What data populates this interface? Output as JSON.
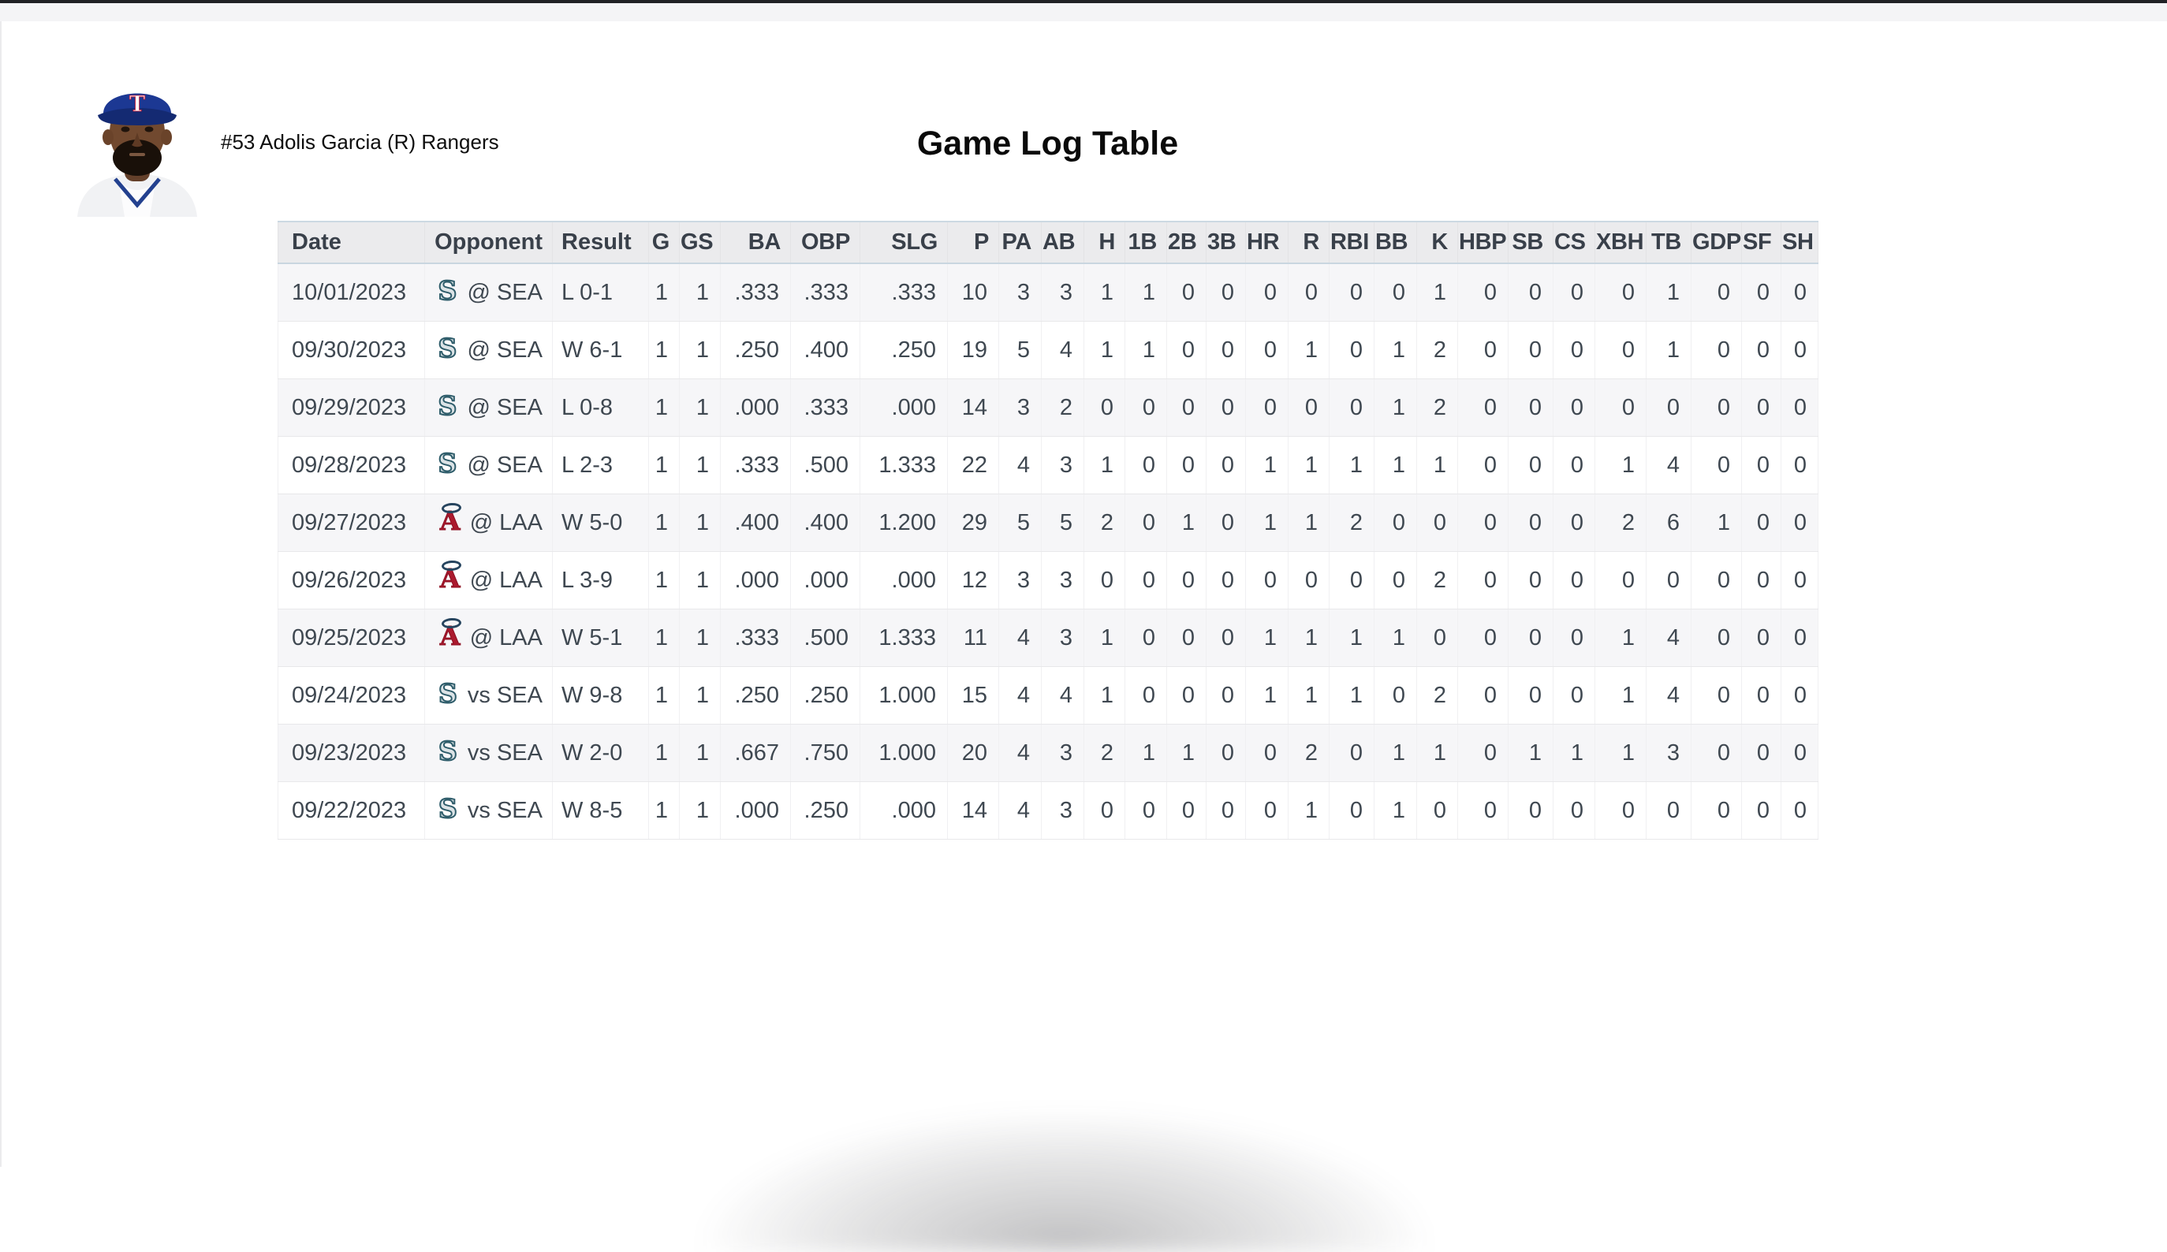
{
  "header": {
    "player_label": "#53 Adolis Garcia (R) Rangers",
    "title": "Game Log Table"
  },
  "colors": {
    "header_rule_blue": "#ccd9e2",
    "row_stripe": "#f6f6f8",
    "header_numeric_bg": "#ebebed",
    "body_text": "#3f4851",
    "mariners_outline": "#2f5d6b",
    "mariners_fill": "#dbe3e6",
    "angels_red": "#ab1a2e",
    "angels_halo_navy": "#27455f",
    "rangers_cap_blue": "#1c3893"
  },
  "table": {
    "columns": [
      "Date",
      "Opponent",
      "Result",
      "G",
      "GS",
      "BA",
      "OBP",
      "SLG",
      "P",
      "PA",
      "AB",
      "H",
      "1B",
      "2B",
      "3B",
      "HR",
      "R",
      "RBI",
      "BB",
      "K",
      "HBP",
      "SB",
      "CS",
      "XBH",
      "TB",
      "GDP",
      "SF",
      "SH"
    ],
    "rows": [
      {
        "date": "10/01/2023",
        "opponent": "@ SEA",
        "team_logo": "seattle-mariners",
        "result": "L 0-1",
        "stats": [
          "1",
          "1",
          ".333",
          ".333",
          ".333",
          "10",
          "3",
          "3",
          "1",
          "1",
          "0",
          "0",
          "0",
          "0",
          "0",
          "0",
          "1",
          "0",
          "0",
          "0",
          "0",
          "1",
          "0",
          "0",
          "0"
        ]
      },
      {
        "date": "09/30/2023",
        "opponent": "@ SEA",
        "team_logo": "seattle-mariners",
        "result": "W 6-1",
        "stats": [
          "1",
          "1",
          ".250",
          ".400",
          ".250",
          "19",
          "5",
          "4",
          "1",
          "1",
          "0",
          "0",
          "0",
          "1",
          "0",
          "1",
          "2",
          "0",
          "0",
          "0",
          "0",
          "1",
          "0",
          "0",
          "0"
        ]
      },
      {
        "date": "09/29/2023",
        "opponent": "@ SEA",
        "team_logo": "seattle-mariners",
        "result": "L 0-8",
        "stats": [
          "1",
          "1",
          ".000",
          ".333",
          ".000",
          "14",
          "3",
          "2",
          "0",
          "0",
          "0",
          "0",
          "0",
          "0",
          "0",
          "1",
          "2",
          "0",
          "0",
          "0",
          "0",
          "0",
          "0",
          "0",
          "0"
        ]
      },
      {
        "date": "09/28/2023",
        "opponent": "@ SEA",
        "team_logo": "seattle-mariners",
        "result": "L 2-3",
        "stats": [
          "1",
          "1",
          ".333",
          ".500",
          "1.333",
          "22",
          "4",
          "3",
          "1",
          "0",
          "0",
          "0",
          "1",
          "1",
          "1",
          "1",
          "1",
          "0",
          "0",
          "0",
          "1",
          "4",
          "0",
          "0",
          "0"
        ]
      },
      {
        "date": "09/27/2023",
        "opponent": "@ LAA",
        "team_logo": "los-angeles-angels",
        "result": "W 5-0",
        "stats": [
          "1",
          "1",
          ".400",
          ".400",
          "1.200",
          "29",
          "5",
          "5",
          "2",
          "0",
          "1",
          "0",
          "1",
          "1",
          "2",
          "0",
          "0",
          "0",
          "0",
          "0",
          "2",
          "6",
          "1",
          "0",
          "0"
        ]
      },
      {
        "date": "09/26/2023",
        "opponent": "@ LAA",
        "team_logo": "los-angeles-angels",
        "result": "L 3-9",
        "stats": [
          "1",
          "1",
          ".000",
          ".000",
          ".000",
          "12",
          "3",
          "3",
          "0",
          "0",
          "0",
          "0",
          "0",
          "0",
          "0",
          "0",
          "2",
          "0",
          "0",
          "0",
          "0",
          "0",
          "0",
          "0",
          "0"
        ]
      },
      {
        "date": "09/25/2023",
        "opponent": "@ LAA",
        "team_logo": "los-angeles-angels",
        "result": "W 5-1",
        "stats": [
          "1",
          "1",
          ".333",
          ".500",
          "1.333",
          "11",
          "4",
          "3",
          "1",
          "0",
          "0",
          "0",
          "1",
          "1",
          "1",
          "1",
          "0",
          "0",
          "0",
          "0",
          "1",
          "4",
          "0",
          "0",
          "0"
        ]
      },
      {
        "date": "09/24/2023",
        "opponent": "vs SEA",
        "team_logo": "seattle-mariners",
        "result": "W 9-8",
        "stats": [
          "1",
          "1",
          ".250",
          ".250",
          "1.000",
          "15",
          "4",
          "4",
          "1",
          "0",
          "0",
          "0",
          "1",
          "1",
          "1",
          "0",
          "2",
          "0",
          "0",
          "0",
          "1",
          "4",
          "0",
          "0",
          "0"
        ]
      },
      {
        "date": "09/23/2023",
        "opponent": "vs SEA",
        "team_logo": "seattle-mariners",
        "result": "W 2-0",
        "stats": [
          "1",
          "1",
          ".667",
          ".750",
          "1.000",
          "20",
          "4",
          "3",
          "2",
          "1",
          "1",
          "0",
          "0",
          "2",
          "0",
          "1",
          "1",
          "0",
          "1",
          "1",
          "1",
          "3",
          "0",
          "0",
          "0"
        ]
      },
      {
        "date": "09/22/2023",
        "opponent": "vs SEA",
        "team_logo": "seattle-mariners",
        "result": "W 8-5",
        "stats": [
          "1",
          "1",
          ".000",
          ".250",
          ".000",
          "14",
          "4",
          "3",
          "0",
          "0",
          "0",
          "0",
          "0",
          "1",
          "0",
          "1",
          "0",
          "0",
          "0",
          "0",
          "0",
          "0",
          "0",
          "0",
          "0"
        ]
      }
    ]
  }
}
